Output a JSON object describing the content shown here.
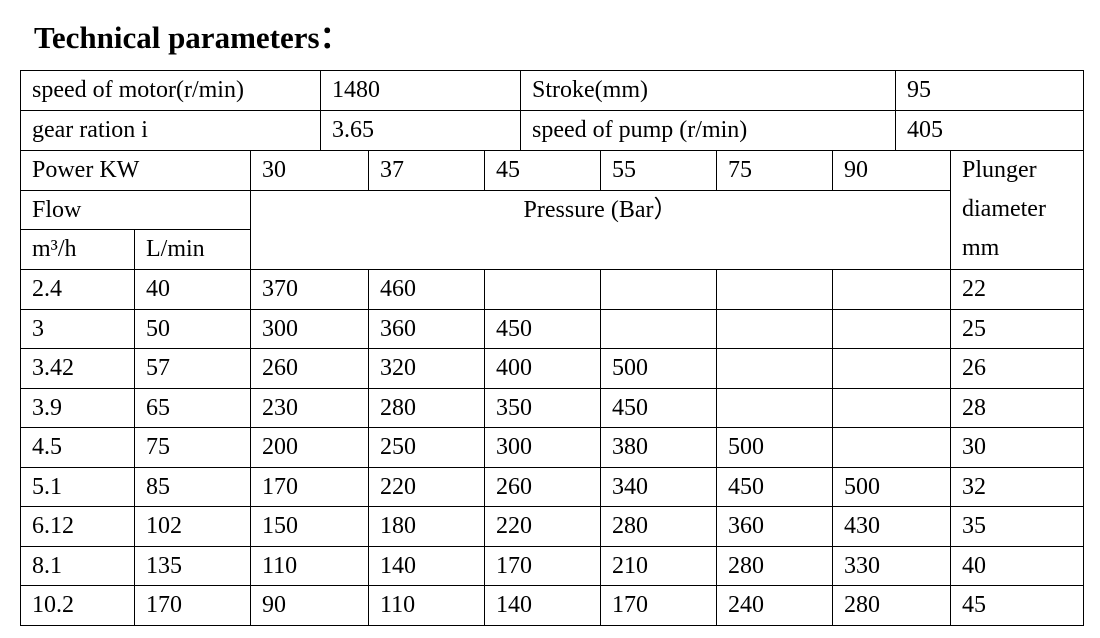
{
  "title": "Technical parameters：",
  "info": [
    [
      "speed of motor(r/min)",
      "1480",
      "Stroke(mm)",
      "95"
    ],
    [
      "gear ration i",
      "3.65",
      "speed of pump (r/min)",
      "405"
    ]
  ],
  "header": {
    "power_label": "Power KW",
    "powers": [
      "30",
      "37",
      "45",
      "55",
      "75",
      "90"
    ],
    "flow_label": "Flow",
    "pressure_label": "Pressure (Bar）",
    "plunger_label": "Plunger diameter mm",
    "flow_units": [
      "m³/h",
      "L/min"
    ]
  },
  "rows": [
    [
      "2.4",
      "40",
      "370",
      "460",
      null,
      null,
      null,
      null,
      "22"
    ],
    [
      "3",
      "50",
      "300",
      "360",
      "450",
      null,
      null,
      null,
      "25"
    ],
    [
      "3.42",
      "57",
      "260",
      "320",
      "400",
      "500",
      null,
      null,
      "26"
    ],
    [
      "3.9",
      "65",
      "230",
      "280",
      "350",
      "450",
      null,
      null,
      "28"
    ],
    [
      "4.5",
      "75",
      "200",
      "250",
      "300",
      "380",
      "500",
      null,
      "30"
    ],
    [
      "5.1",
      "85",
      "170",
      "220",
      "260",
      "340",
      "450",
      "500",
      "32"
    ],
    [
      "6.12",
      "102",
      "150",
      "180",
      "220",
      "280",
      "360",
      "430",
      "35"
    ],
    [
      "8.1",
      "135",
      "110",
      "140",
      "170",
      "210",
      "280",
      "330",
      "40"
    ],
    [
      "10.2",
      "170",
      "90",
      "110",
      "140",
      "170",
      "240",
      "280",
      "45"
    ]
  ]
}
